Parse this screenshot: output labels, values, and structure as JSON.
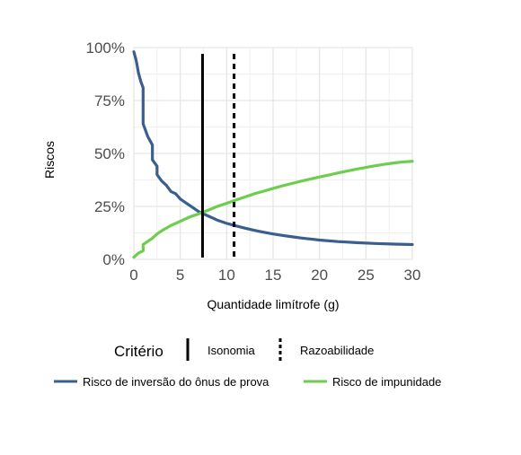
{
  "chart_data": {
    "type": "line",
    "title": "",
    "xlabel": "Quantidade limítrofe (g)",
    "ylabel": "Riscos",
    "xlim": [
      0,
      30
    ],
    "ylim": [
      0,
      1
    ],
    "x_ticks": [
      0,
      5,
      10,
      15,
      20,
      25,
      30
    ],
    "x_tick_labels": [
      "0",
      "5",
      "10",
      "15",
      "20",
      "25",
      "30"
    ],
    "y_ticks": [
      0,
      0.25,
      0.5,
      0.75,
      1.0
    ],
    "y_tick_labels": [
      "0%",
      "25%",
      "50%",
      "75%",
      "100%"
    ],
    "grid": true,
    "legend_position": "bottom",
    "series": [
      {
        "name": "Risco de inversão do ônus de prova",
        "color": "#3a5f8e",
        "x": [
          0,
          0.25,
          0.5,
          0.75,
          1.0,
          1.0,
          1.5,
          2.0,
          2.0,
          2.5,
          2.5,
          3.0,
          3.5,
          4.0,
          4.5,
          5.0,
          5.5,
          6.0,
          6.5,
          7.0,
          7.5,
          8.0,
          9.0,
          10.0,
          11.0,
          12.0,
          13.0,
          14.0,
          15.0,
          16.0,
          17.0,
          18.0,
          19.0,
          20.0,
          22.0,
          24.0,
          26.0,
          28.0,
          30.0
        ],
        "y": [
          0.98,
          0.94,
          0.88,
          0.84,
          0.81,
          0.64,
          0.58,
          0.54,
          0.47,
          0.44,
          0.4,
          0.37,
          0.35,
          0.32,
          0.31,
          0.285,
          0.27,
          0.255,
          0.24,
          0.225,
          0.215,
          0.205,
          0.185,
          0.17,
          0.158,
          0.147,
          0.137,
          0.128,
          0.12,
          0.113,
          0.107,
          0.101,
          0.096,
          0.091,
          0.084,
          0.079,
          0.075,
          0.072,
          0.07
        ]
      },
      {
        "name": "Risco de impunidade",
        "color": "#6ccd4f",
        "x": [
          0,
          0.5,
          1.0,
          1.0,
          1.5,
          2.0,
          2.5,
          3.0,
          4.0,
          5.0,
          6.0,
          7.0,
          8.0,
          9.0,
          10.0,
          11.0,
          12.0,
          13.0,
          14.0,
          15.0,
          16.0,
          17.0,
          18.0,
          19.0,
          20.0,
          21.0,
          22.0,
          23.0,
          24.0,
          25.0,
          26.0,
          27.0,
          28.0,
          29.0,
          30.0
        ],
        "y": [
          0.01,
          0.03,
          0.04,
          0.07,
          0.085,
          0.1,
          0.12,
          0.135,
          0.16,
          0.18,
          0.2,
          0.215,
          0.232,
          0.25,
          0.265,
          0.28,
          0.295,
          0.31,
          0.322,
          0.335,
          0.347,
          0.358,
          0.369,
          0.379,
          0.389,
          0.398,
          0.408,
          0.417,
          0.426,
          0.434,
          0.442,
          0.449,
          0.455,
          0.46,
          0.463
        ]
      }
    ],
    "vertical_lines": [
      {
        "name": "Isonomia",
        "x": 7.4,
        "style": "solid",
        "color": "#000000"
      },
      {
        "name": "Razoabilidade",
        "x": 10.8,
        "style": "dashed",
        "color": "#000000"
      }
    ],
    "legend_linetype_title": "Critério"
  }
}
